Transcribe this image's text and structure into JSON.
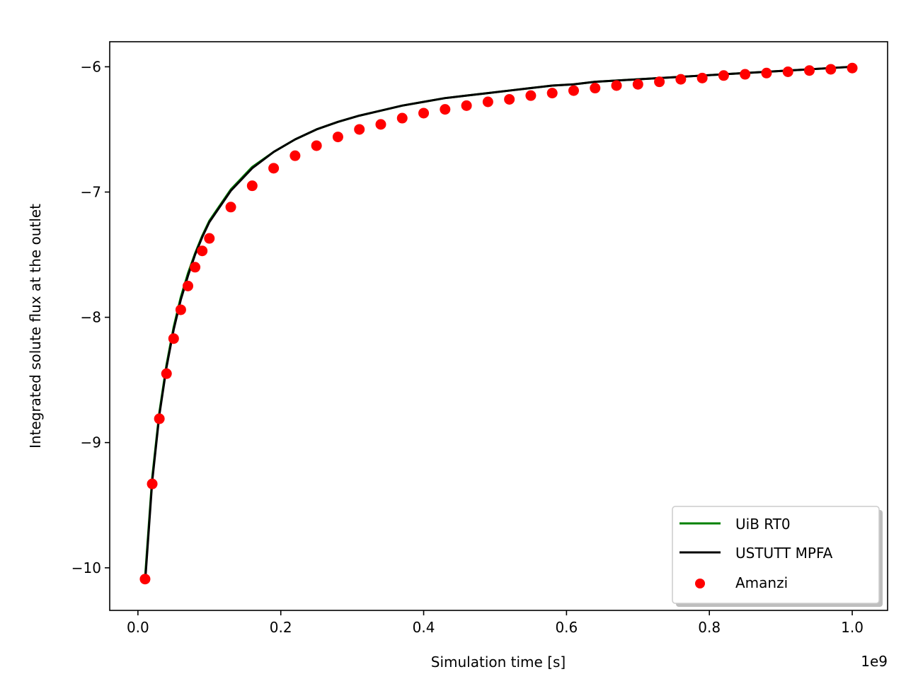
{
  "chart_data": {
    "type": "line",
    "title": "",
    "xlabel": "Simulation time [s]",
    "ylabel": "Integrated solute flux at the outlet",
    "x_offset_label": "1e9",
    "xlim": [
      -0.0395,
      1.0495
    ],
    "ylim": [
      -10.34,
      -5.8
    ],
    "xticks": [
      0.0,
      0.2,
      0.4,
      0.6,
      0.8,
      1.0
    ],
    "xtick_labels": [
      "0.0",
      "0.2",
      "0.4",
      "0.6",
      "0.8",
      "1.0"
    ],
    "yticks": [
      -6,
      -7,
      -8,
      -9,
      -10
    ],
    "ytick_labels": [
      "−6",
      "−7",
      "−8",
      "−9",
      "−10"
    ],
    "grid": false,
    "legend_position": "lower-right",
    "series": [
      {
        "name": "UiB RT0",
        "kind": "line",
        "color": "#008000",
        "x": [
          0.01,
          0.02,
          0.03,
          0.04,
          0.05,
          0.06,
          0.07,
          0.08,
          0.09,
          0.1,
          0.13,
          0.16,
          0.19,
          0.22,
          0.25,
          0.28,
          0.31,
          0.34,
          0.37,
          0.4,
          0.43,
          0.46,
          0.49,
          0.52,
          0.55,
          0.58,
          0.61,
          0.64,
          0.67,
          0.7,
          0.73,
          0.76,
          0.79,
          0.82,
          0.85,
          0.88,
          0.91,
          0.94,
          0.97,
          1.0
        ],
        "y": [
          -10.08,
          -9.28,
          -8.76,
          -8.38,
          -8.08,
          -7.84,
          -7.65,
          -7.49,
          -7.35,
          -7.23,
          -6.98,
          -6.8,
          -6.68,
          -6.58,
          -6.5,
          -6.44,
          -6.39,
          -6.35,
          -6.31,
          -6.28,
          -6.25,
          -6.23,
          -6.21,
          -6.19,
          -6.17,
          -6.15,
          -6.14,
          -6.12,
          -6.11,
          -6.1,
          -6.09,
          -6.08,
          -6.07,
          -6.06,
          -6.05,
          -6.04,
          -6.03,
          -6.02,
          -6.01,
          -6.0
        ]
      },
      {
        "name": "USTUTT MPFA",
        "kind": "line",
        "color": "#000000",
        "x": [
          0.01,
          0.02,
          0.03,
          0.04,
          0.05,
          0.06,
          0.07,
          0.08,
          0.09,
          0.1,
          0.13,
          0.16,
          0.19,
          0.22,
          0.25,
          0.28,
          0.31,
          0.34,
          0.37,
          0.4,
          0.43,
          0.46,
          0.49,
          0.52,
          0.55,
          0.58,
          0.61,
          0.64,
          0.67,
          0.7,
          0.73,
          0.76,
          0.79,
          0.82,
          0.85,
          0.88,
          0.91,
          0.94,
          0.97,
          1.0
        ],
        "y": [
          -10.12,
          -9.31,
          -8.78,
          -8.4,
          -8.1,
          -7.86,
          -7.67,
          -7.5,
          -7.36,
          -7.24,
          -6.99,
          -6.81,
          -6.68,
          -6.58,
          -6.5,
          -6.44,
          -6.39,
          -6.35,
          -6.31,
          -6.28,
          -6.25,
          -6.23,
          -6.21,
          -6.19,
          -6.17,
          -6.15,
          -6.14,
          -6.12,
          -6.11,
          -6.1,
          -6.09,
          -6.08,
          -6.07,
          -6.06,
          -6.05,
          -6.04,
          -6.03,
          -6.02,
          -6.01,
          -6.0
        ]
      },
      {
        "name": "Amanzi",
        "kind": "scatter",
        "color": "#ff0000",
        "x": [
          0.01,
          0.02,
          0.03,
          0.04,
          0.05,
          0.06,
          0.07,
          0.08,
          0.09,
          0.1,
          0.13,
          0.16,
          0.19,
          0.22,
          0.25,
          0.28,
          0.31,
          0.34,
          0.37,
          0.4,
          0.43,
          0.46,
          0.49,
          0.52,
          0.55,
          0.58,
          0.61,
          0.64,
          0.67,
          0.7,
          0.73,
          0.76,
          0.79,
          0.82,
          0.85,
          0.88,
          0.91,
          0.94,
          0.97,
          1.0
        ],
        "y": [
          -10.09,
          -9.33,
          -8.81,
          -8.45,
          -8.17,
          -7.94,
          -7.75,
          -7.6,
          -7.47,
          -7.37,
          -7.12,
          -6.95,
          -6.81,
          -6.71,
          -6.63,
          -6.56,
          -6.5,
          -6.46,
          -6.41,
          -6.37,
          -6.34,
          -6.31,
          -6.28,
          -6.26,
          -6.23,
          -6.21,
          -6.19,
          -6.17,
          -6.15,
          -6.14,
          -6.12,
          -6.1,
          -6.09,
          -6.07,
          -6.06,
          -6.05,
          -6.04,
          -6.03,
          -6.02,
          -6.01
        ]
      }
    ]
  }
}
